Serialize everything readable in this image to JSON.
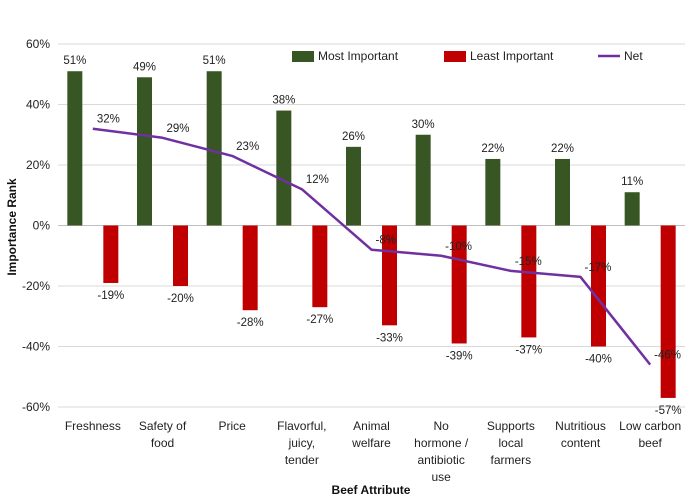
{
  "chart_data": {
    "type": "bar",
    "xlabel": "Beef Attribute",
    "ylabel": "Importance Rank",
    "ylim": [
      -60,
      60
    ],
    "y_ticks": [
      60,
      40,
      20,
      0,
      -20,
      -40,
      -60
    ],
    "y_tick_labels": [
      "60%",
      "40%",
      "20%",
      "0%",
      "-20%",
      "-40%",
      "-60%"
    ],
    "grid": true,
    "legend_position": "top",
    "categories": [
      [
        "Freshness"
      ],
      [
        "Safety of",
        "food"
      ],
      [
        "Price"
      ],
      [
        "Flavorful,",
        "juicy,",
        "tender"
      ],
      [
        "Animal",
        "welfare"
      ],
      [
        "No",
        "hormone /",
        "antibiotic",
        "use"
      ],
      [
        "Supports",
        "local",
        "farmers"
      ],
      [
        "Nutritious",
        "content"
      ],
      [
        "Low carbon",
        "beef"
      ]
    ],
    "series": [
      {
        "name": "Most Important",
        "kind": "bar",
        "color": "#375623",
        "values": [
          51,
          49,
          51,
          38,
          26,
          30,
          22,
          22,
          11
        ],
        "labels": [
          "51%",
          "49%",
          "51%",
          "38%",
          "26%",
          "30%",
          "22%",
          "22%",
          "11%"
        ]
      },
      {
        "name": "Least Important",
        "kind": "bar",
        "color": "#C00000",
        "values": [
          -19,
          -20,
          -28,
          -27,
          -33,
          -39,
          -37,
          -40,
          -57
        ],
        "labels": [
          "-19%",
          "-20%",
          "-28%",
          "-27%",
          "-33%",
          "-39%",
          "-37%",
          "-40%",
          "-57%"
        ]
      },
      {
        "name": "Net",
        "kind": "line",
        "color": "#7030A0",
        "values": [
          32,
          29,
          23,
          12,
          -8,
          -10,
          -15,
          -17,
          -46
        ],
        "labels": [
          "32%",
          "29%",
          "23%",
          "12%",
          "-8%",
          "-10%",
          "-15%",
          "-17%",
          "-46%"
        ]
      }
    ]
  }
}
